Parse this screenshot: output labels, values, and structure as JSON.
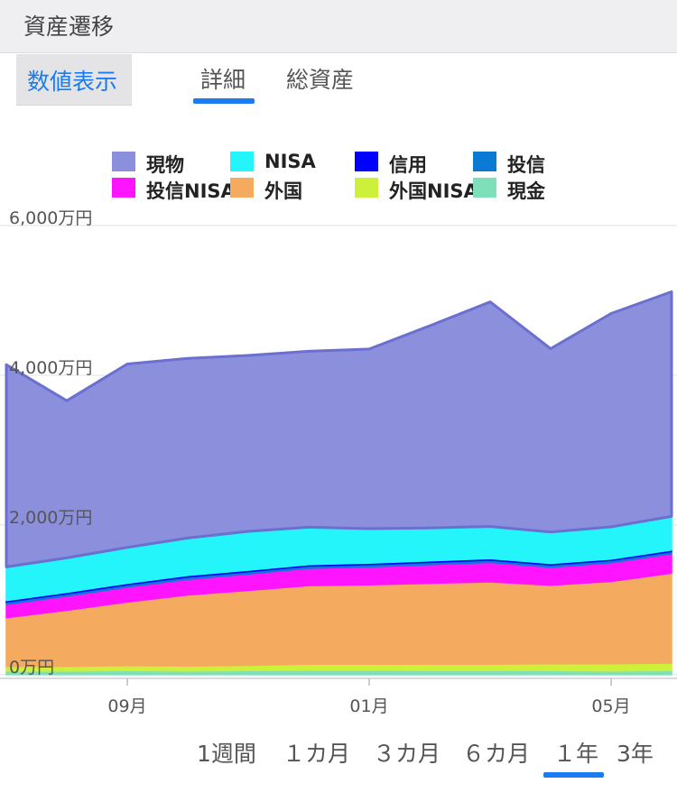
{
  "header": {
    "title": "資産遷移"
  },
  "view_toggle": {
    "label": "数値表示"
  },
  "tabs": [
    {
      "label": "詳細",
      "active": true
    },
    {
      "label": "総資産",
      "active": false
    }
  ],
  "ranges": [
    {
      "label": "1週間",
      "active": false
    },
    {
      "label": "１カ月",
      "active": false
    },
    {
      "label": "３カ月",
      "active": false
    },
    {
      "label": "６カ月",
      "active": false
    },
    {
      "label": "１年",
      "active": true
    },
    {
      "label": "3年",
      "active": false
    }
  ],
  "accent_color": "#1a7cf0",
  "chart_data": {
    "type": "area",
    "stacked": true,
    "legend_position": "top",
    "grid": true,
    "x": [
      "2023-07",
      "2023-08",
      "2023-09",
      "2023-10",
      "2023-11",
      "2023-12",
      "2024-01",
      "2024-02",
      "2024-03",
      "2024-04",
      "2024-05",
      "2024-06"
    ],
    "x_ticks": [
      {
        "label": "09月",
        "index": 2
      },
      {
        "label": "01月",
        "index": 6
      },
      {
        "label": "05月",
        "index": 10
      }
    ],
    "y_ticks": [
      "0万円",
      "2,000万円",
      "4,000万円",
      "6,000万円"
    ],
    "y_tick_values": [
      0,
      2000,
      4000,
      6000
    ],
    "ylim": [
      -50,
      6000
    ],
    "series": [
      {
        "name": "現金",
        "color": "#7ee0b8",
        "values": [
          50,
          50,
          55,
          50,
          55,
          60,
          60,
          55,
          55,
          55,
          50,
          55
        ]
      },
      {
        "name": "外国NISA",
        "color": "#cdf03a",
        "values": [
          60,
          60,
          65,
          65,
          70,
          80,
          80,
          85,
          85,
          90,
          95,
          100
        ]
      },
      {
        "name": "外国",
        "color": "#f4aa5f",
        "values": [
          650,
          750,
          850,
          950,
          1000,
          1050,
          1060,
          1080,
          1100,
          1050,
          1100,
          1200
        ]
      },
      {
        "name": "投信NISA",
        "color": "#ff14ff",
        "values": [
          180,
          190,
          200,
          210,
          220,
          230,
          240,
          250,
          260,
          240,
          250,
          260
        ]
      },
      {
        "name": "投信",
        "color": "#0a7ad5",
        "values": [
          30,
          30,
          30,
          30,
          30,
          30,
          30,
          30,
          30,
          30,
          30,
          30
        ]
      },
      {
        "name": "信用",
        "color": "#0000ff",
        "values": [
          20,
          20,
          20,
          20,
          20,
          20,
          20,
          20,
          20,
          20,
          20,
          20
        ]
      },
      {
        "name": "NISA",
        "color": "#24f5fa",
        "values": [
          450,
          460,
          480,
          500,
          520,
          500,
          460,
          440,
          430,
          420,
          430,
          450
        ]
      },
      {
        "name": "現物",
        "color": "#8c8fdc",
        "stroke": "#6b6fcf",
        "values": [
          2700,
          2100,
          2450,
          2400,
          2350,
          2350,
          2400,
          2700,
          3000,
          2450,
          2850,
          3000
        ]
      }
    ]
  }
}
